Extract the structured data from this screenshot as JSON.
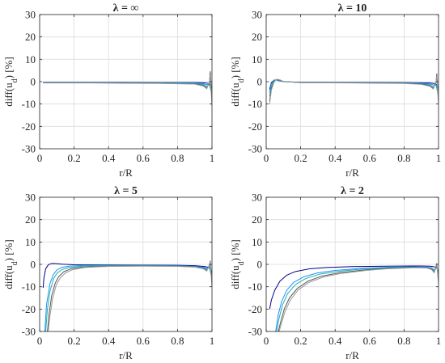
{
  "figure": {
    "panels": [
      {
        "title": "λ = ∞"
      },
      {
        "title": "λ = 10"
      },
      {
        "title": "λ = 5"
      },
      {
        "title": "λ = 2"
      }
    ]
  },
  "chart_data": [
    {
      "type": "line",
      "title": "λ = ∞",
      "xlabel": "r/R",
      "ylabel": "diff(u_d) [%]",
      "xlim": [
        0,
        1
      ],
      "ylim": [
        -30,
        30
      ],
      "xticks": [
        "0",
        "0.2",
        "0.4",
        "0.6",
        "0.8",
        "1"
      ],
      "yticks": [
        "-30",
        "-20",
        "-10",
        "0",
        "10",
        "20",
        "30"
      ],
      "grid": true,
      "series": [
        {
          "color": "#00008b",
          "x": [
            0.02,
            0.1,
            0.3,
            0.5,
            0.7,
            0.9,
            0.95,
            0.975,
            0.99,
            1.0
          ],
          "y": [
            -0.3,
            -0.3,
            -0.3,
            -0.3,
            -0.4,
            -0.4,
            -0.5,
            -0.7,
            -1.2,
            -3.0
          ]
        },
        {
          "color": "#1e90ff",
          "x": [
            0.02,
            0.1,
            0.3,
            0.5,
            0.7,
            0.9,
            0.95,
            0.97,
            0.985,
            1.0
          ],
          "y": [
            -0.4,
            -0.4,
            -0.4,
            -0.4,
            -0.5,
            -0.6,
            -0.9,
            -1.4,
            -1.0,
            -5.0
          ]
        },
        {
          "color": "#20b2aa",
          "x": [
            0.02,
            0.1,
            0.3,
            0.5,
            0.7,
            0.9,
            0.95,
            0.97,
            0.985,
            1.0
          ],
          "y": [
            -0.5,
            -0.5,
            -0.5,
            -0.5,
            -0.6,
            -0.8,
            -1.3,
            -2.2,
            -1.2,
            -6.0
          ]
        },
        {
          "color": "#555555",
          "x": [
            0.02,
            0.1,
            0.3,
            0.5,
            0.7,
            0.9,
            0.95,
            0.97,
            0.985,
            0.99,
            1.0
          ],
          "y": [
            -0.5,
            -0.5,
            -0.5,
            -0.6,
            -0.7,
            -1.0,
            -1.7,
            -2.8,
            -0.5,
            4.5,
            -8.0
          ]
        },
        {
          "color": "#999999",
          "x": [
            0.02,
            0.1,
            0.3,
            0.5,
            0.7,
            0.9,
            0.95,
            0.97,
            0.985,
            0.99,
            1.0
          ],
          "y": [
            -0.6,
            -0.6,
            -0.6,
            -0.7,
            -0.8,
            -1.1,
            -2.0,
            -3.2,
            0.0,
            3.0,
            -11.0
          ]
        }
      ]
    },
    {
      "type": "line",
      "title": "λ = 10",
      "xlabel": "r/R",
      "ylabel": "diff(u_d) [%]",
      "xlim": [
        0,
        1
      ],
      "ylim": [
        -30,
        30
      ],
      "xticks": [
        "0",
        "0.2",
        "0.4",
        "0.6",
        "0.8",
        "1"
      ],
      "yticks": [
        "-30",
        "-20",
        "-10",
        "0",
        "10",
        "20",
        "30"
      ],
      "grid": true,
      "series": [
        {
          "color": "#00008b",
          "x": [
            0.02,
            0.03,
            0.045,
            0.06,
            0.08,
            0.1,
            0.2,
            0.5,
            0.8,
            0.9,
            0.95,
            0.975,
            0.99,
            1.0
          ],
          "y": [
            -3.5,
            -0.5,
            0.7,
            0.7,
            0.3,
            0.0,
            -0.3,
            -0.3,
            -0.4,
            -0.5,
            -0.6,
            -0.8,
            -1.3,
            -3.0
          ]
        },
        {
          "color": "#1e90ff",
          "x": [
            0.02,
            0.03,
            0.045,
            0.06,
            0.08,
            0.1,
            0.2,
            0.5,
            0.8,
            0.9,
            0.95,
            0.97,
            0.985,
            1.0
          ],
          "y": [
            -5.0,
            -1.0,
            0.6,
            0.8,
            0.4,
            0.0,
            -0.3,
            -0.4,
            -0.5,
            -0.7,
            -1.0,
            -1.5,
            -1.0,
            -5.0
          ]
        },
        {
          "color": "#20b2aa",
          "x": [
            0.02,
            0.03,
            0.045,
            0.06,
            0.08,
            0.1,
            0.2,
            0.5,
            0.8,
            0.9,
            0.95,
            0.97,
            0.985,
            1.0
          ],
          "y": [
            -6.5,
            -1.8,
            0.4,
            0.9,
            0.5,
            0.0,
            -0.4,
            -0.5,
            -0.6,
            -0.9,
            -1.4,
            -2.3,
            -1.3,
            -6.5
          ]
        },
        {
          "color": "#555555",
          "x": [
            0.02,
            0.03,
            0.045,
            0.06,
            0.08,
            0.1,
            0.2,
            0.5,
            0.8,
            0.9,
            0.95,
            0.97,
            0.985,
            0.99,
            1.0
          ],
          "y": [
            -8.5,
            -3.0,
            0.0,
            1.0,
            0.7,
            0.1,
            -0.4,
            -0.5,
            -0.7,
            -1.1,
            -1.8,
            -2.9,
            -0.5,
            3.5,
            -8.5
          ]
        },
        {
          "color": "#999999",
          "x": [
            0.02,
            0.03,
            0.045,
            0.06,
            0.08,
            0.1,
            0.2,
            0.5,
            0.8,
            0.9,
            0.95,
            0.97,
            0.985,
            0.99,
            1.0
          ],
          "y": [
            -10.0,
            -3.8,
            -0.3,
            1.1,
            0.8,
            0.1,
            -0.5,
            -0.6,
            -0.8,
            -1.2,
            -2.1,
            -3.3,
            0.0,
            2.5,
            -10.0
          ]
        }
      ]
    },
    {
      "type": "line",
      "title": "λ = 5",
      "xlabel": "r/R",
      "ylabel": "diff(u_d) [%]",
      "xlim": [
        0,
        1
      ],
      "ylim": [
        -30,
        30
      ],
      "xticks": [
        "0",
        "0.2",
        "0.4",
        "0.6",
        "0.8",
        "1"
      ],
      "yticks": [
        "-30",
        "-20",
        "-10",
        "0",
        "10",
        "20",
        "30"
      ],
      "grid": true,
      "series": [
        {
          "color": "#00008b",
          "x": [
            0.02,
            0.025,
            0.035,
            0.05,
            0.065,
            0.08,
            0.1,
            0.13,
            0.2,
            0.5,
            0.8,
            0.9,
            0.95,
            0.975,
            0.99,
            1.0
          ],
          "y": [
            -10.5,
            -6.0,
            -2.0,
            -0.2,
            0.3,
            0.4,
            0.3,
            0.1,
            -0.2,
            -0.3,
            -0.4,
            -0.6,
            -0.9,
            -1.2,
            -1.8,
            -4.0
          ]
        },
        {
          "color": "#1e90ff",
          "x": [
            0.03,
            0.04,
            0.06,
            0.08,
            0.1,
            0.13,
            0.17,
            0.25,
            0.4,
            0.6,
            0.8,
            0.9,
            0.95,
            0.97,
            0.985,
            1.0
          ],
          "y": [
            -30,
            -18.0,
            -8.5,
            -4.5,
            -2.5,
            -1.3,
            -0.8,
            -0.5,
            -0.5,
            -0.5,
            -0.6,
            -0.9,
            -1.3,
            -1.8,
            -1.0,
            -5.0
          ]
        },
        {
          "color": "#20b2aa",
          "x": [
            0.035,
            0.045,
            0.06,
            0.08,
            0.1,
            0.13,
            0.17,
            0.25,
            0.4,
            0.6,
            0.8,
            0.9,
            0.95,
            0.97,
            0.985,
            1.0
          ],
          "y": [
            -30,
            -20.0,
            -12.0,
            -6.5,
            -4.0,
            -2.3,
            -1.4,
            -0.8,
            -0.6,
            -0.6,
            -0.7,
            -1.0,
            -1.5,
            -2.3,
            -1.3,
            -6.5
          ]
        },
        {
          "color": "#555555",
          "x": [
            0.045,
            0.055,
            0.07,
            0.09,
            0.11,
            0.14,
            0.18,
            0.25,
            0.4,
            0.6,
            0.8,
            0.9,
            0.95,
            0.97,
            0.985,
            0.99,
            1.0
          ],
          "y": [
            -30,
            -22.0,
            -14.0,
            -8.5,
            -5.5,
            -3.3,
            -2.0,
            -1.2,
            -0.8,
            -0.7,
            -0.8,
            -1.1,
            -1.8,
            -2.8,
            -0.5,
            1.5,
            -8.0
          ]
        },
        {
          "color": "#999999",
          "x": [
            0.05,
            0.06,
            0.075,
            0.095,
            0.12,
            0.15,
            0.19,
            0.26,
            0.4,
            0.6,
            0.8,
            0.9,
            0.95,
            0.97,
            0.985,
            0.99,
            1.0
          ],
          "y": [
            -30,
            -23.0,
            -15.5,
            -9.5,
            -6.0,
            -3.8,
            -2.4,
            -1.4,
            -0.9,
            -0.8,
            -0.9,
            -1.2,
            -2.0,
            -3.0,
            0.0,
            1.0,
            -10.0
          ]
        }
      ]
    },
    {
      "type": "line",
      "title": "λ = 2",
      "xlabel": "r/R",
      "ylabel": "diff(u_d) [%]",
      "xlim": [
        0,
        1
      ],
      "ylim": [
        -30,
        30
      ],
      "xticks": [
        "0",
        "0.2",
        "0.4",
        "0.6",
        "0.8",
        "1"
      ],
      "yticks": [
        "-30",
        "-20",
        "-10",
        "0",
        "10",
        "20",
        "30"
      ],
      "grid": true,
      "series": [
        {
          "color": "#00008b",
          "x": [
            0.02,
            0.03,
            0.05,
            0.08,
            0.12,
            0.17,
            0.25,
            0.35,
            0.5,
            0.7,
            0.9,
            0.95,
            0.975,
            0.99,
            1.0
          ],
          "y": [
            -20.0,
            -16.0,
            -11.5,
            -7.5,
            -4.8,
            -3.2,
            -2.0,
            -1.4,
            -1.0,
            -0.8,
            -0.7,
            -0.8,
            -1.1,
            -1.5,
            -3.5
          ]
        },
        {
          "color": "#1e90ff",
          "x": [
            0.055,
            0.07,
            0.09,
            0.12,
            0.16,
            0.22,
            0.3,
            0.4,
            0.55,
            0.7,
            0.85,
            0.93,
            0.96,
            0.975,
            0.99,
            1.0
          ],
          "y": [
            -30,
            -22.5,
            -16.5,
            -11.5,
            -8.0,
            -5.5,
            -3.8,
            -2.7,
            -1.8,
            -1.3,
            -1.1,
            -1.2,
            -1.6,
            -2.5,
            -1.0,
            -4.0
          ]
        },
        {
          "color": "#20b2aa",
          "x": [
            0.06,
            0.075,
            0.095,
            0.125,
            0.17,
            0.23,
            0.31,
            0.42,
            0.56,
            0.7,
            0.85,
            0.93,
            0.96,
            0.975,
            0.99,
            1.0
          ],
          "y": [
            -30,
            -24.0,
            -18.0,
            -13.0,
            -9.0,
            -6.3,
            -4.4,
            -3.1,
            -2.1,
            -1.5,
            -1.2,
            -1.4,
            -1.9,
            -3.0,
            -1.2,
            -5.0
          ]
        },
        {
          "color": "#555555",
          "x": [
            0.07,
            0.085,
            0.105,
            0.135,
            0.18,
            0.24,
            0.32,
            0.43,
            0.57,
            0.7,
            0.85,
            0.93,
            0.96,
            0.975,
            0.985,
            0.99,
            1.0
          ],
          "y": [
            -30,
            -25.5,
            -20.0,
            -15.0,
            -10.8,
            -7.6,
            -5.3,
            -3.7,
            -2.5,
            -1.8,
            -1.4,
            -1.5,
            -2.1,
            -3.5,
            -0.8,
            0.0,
            -7.5
          ]
        },
        {
          "color": "#999999",
          "x": [
            0.075,
            0.09,
            0.11,
            0.14,
            0.185,
            0.245,
            0.33,
            0.44,
            0.58,
            0.7,
            0.85,
            0.93,
            0.96,
            0.975,
            0.985,
            0.99,
            1.0
          ],
          "y": [
            -30,
            -26.0,
            -21.0,
            -16.0,
            -11.5,
            -8.2,
            -5.7,
            -4.0,
            -2.7,
            -2.0,
            -1.5,
            -1.6,
            -2.3,
            -3.8,
            -0.5,
            0.5,
            -9.0
          ]
        }
      ]
    }
  ]
}
